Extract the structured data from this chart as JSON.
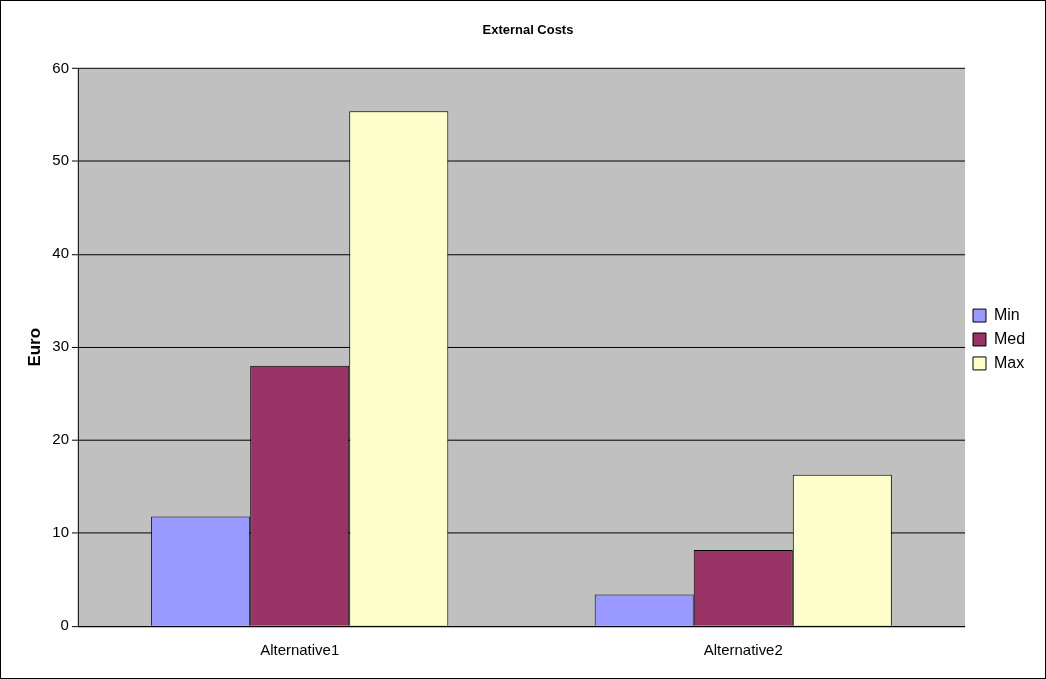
{
  "chart_data": {
    "type": "bar",
    "title": "External Costs",
    "ylabel": "Euro",
    "categories": [
      "Alternative1",
      "Alternative2"
    ],
    "series": [
      {
        "name": "Min",
        "color": "#9999ff",
        "values": [
          11.8,
          3.4
        ]
      },
      {
        "name": "Med",
        "color": "#993366",
        "values": [
          28.0,
          8.2
        ]
      },
      {
        "name": "Max",
        "color": "#ffffcc",
        "values": [
          55.4,
          16.3
        ]
      }
    ],
    "ylim": [
      0,
      60
    ],
    "yticks": [
      0,
      10,
      20,
      30,
      40,
      50,
      60
    ],
    "grid": "y",
    "legend": "right"
  }
}
